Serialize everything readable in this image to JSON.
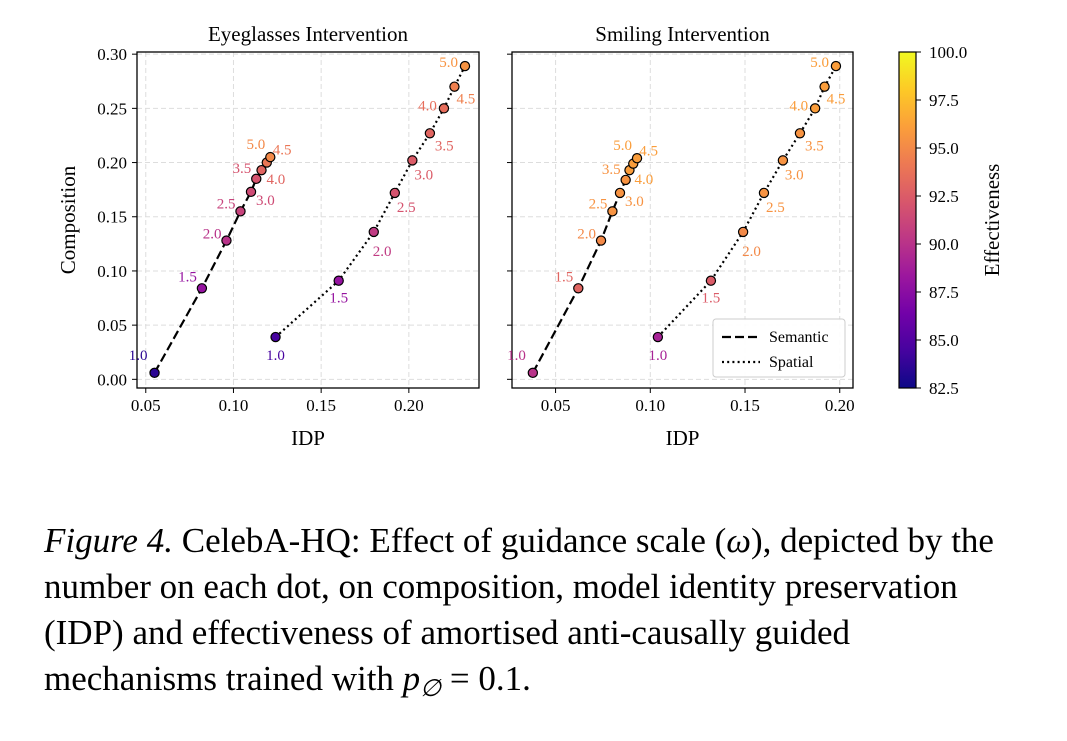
{
  "chart_data": [
    {
      "type": "scatter",
      "title": "Eyeglasses Intervention",
      "xlabel": "IDP",
      "ylabel": "Composition",
      "xlim": [
        0.045,
        0.24
      ],
      "ylim": [
        -0.008,
        0.302
      ],
      "xticks": [
        "0.05",
        "0.10",
        "0.15",
        "0.20"
      ],
      "yticks": [
        "0.00",
        "0.05",
        "0.10",
        "0.15",
        "0.20",
        "0.25",
        "0.30"
      ],
      "grid": true,
      "series": [
        {
          "name": "Semantic",
          "line_style": "dashed",
          "points": [
            {
              "x": 0.055,
              "y": 0.006,
              "label": "1.0",
              "effectiveness": 83.5
            },
            {
              "x": 0.082,
              "y": 0.084,
              "label": "1.5",
              "effectiveness": 88.0
            },
            {
              "x": 0.096,
              "y": 0.128,
              "label": "2.0",
              "effectiveness": 90.0
            },
            {
              "x": 0.104,
              "y": 0.155,
              "label": "2.5",
              "effectiveness": 91.0
            },
            {
              "x": 0.11,
              "y": 0.173,
              "label": "3.0",
              "effectiveness": 91.5
            },
            {
              "x": 0.113,
              "y": 0.185,
              "label": "3.5",
              "effectiveness": 92.0
            },
            {
              "x": 0.116,
              "y": 0.193,
              "label": "4.0",
              "effectiveness": 93.0
            },
            {
              "x": 0.119,
              "y": 0.2,
              "label": "4.5",
              "effectiveness": 94.0
            },
            {
              "x": 0.121,
              "y": 0.205,
              "label": "5.0",
              "effectiveness": 95.0
            }
          ]
        },
        {
          "name": "Spatial",
          "line_style": "dotted",
          "points": [
            {
              "x": 0.124,
              "y": 0.039,
              "label": "1.0",
              "effectiveness": 84.5
            },
            {
              "x": 0.16,
              "y": 0.091,
              "label": "1.5",
              "effectiveness": 88.0
            },
            {
              "x": 0.18,
              "y": 0.136,
              "label": "2.0",
              "effectiveness": 90.5
            },
            {
              "x": 0.192,
              "y": 0.172,
              "label": "2.5",
              "effectiveness": 92.0
            },
            {
              "x": 0.202,
              "y": 0.202,
              "label": "3.0",
              "effectiveness": 92.5
            },
            {
              "x": 0.212,
              "y": 0.227,
              "label": "3.5",
              "effectiveness": 93.0
            },
            {
              "x": 0.22,
              "y": 0.25,
              "label": "4.0",
              "effectiveness": 93.5
            },
            {
              "x": 0.226,
              "y": 0.27,
              "label": "4.5",
              "effectiveness": 94.5
            },
            {
              "x": 0.232,
              "y": 0.289,
              "label": "5.0",
              "effectiveness": 95.5
            }
          ]
        }
      ]
    },
    {
      "type": "scatter",
      "title": "Smiling Intervention",
      "xlabel": "IDP",
      "ylabel": "",
      "xlim": [
        0.027,
        0.207
      ],
      "ylim": [
        -0.008,
        0.302
      ],
      "xticks": [
        "0.05",
        "0.10",
        "0.15",
        "0.20"
      ],
      "yticks": [],
      "grid": true,
      "legend": {
        "position": "lower-right",
        "entries": [
          "Semantic",
          "Spatial"
        ]
      },
      "series": [
        {
          "name": "Semantic",
          "line_style": "dashed",
          "points": [
            {
              "x": 0.038,
              "y": 0.006,
              "label": "1.0",
              "effectiveness": 90.0
            },
            {
              "x": 0.062,
              "y": 0.084,
              "label": "1.5",
              "effectiveness": 93.0
            },
            {
              "x": 0.074,
              "y": 0.128,
              "label": "2.0",
              "effectiveness": 95.0
            },
            {
              "x": 0.08,
              "y": 0.155,
              "label": "2.5",
              "effectiveness": 95.5
            },
            {
              "x": 0.084,
              "y": 0.172,
              "label": "3.0",
              "effectiveness": 95.5
            },
            {
              "x": 0.087,
              "y": 0.184,
              "label": "3.5",
              "effectiveness": 95.5
            },
            {
              "x": 0.089,
              "y": 0.193,
              "label": "4.0",
              "effectiveness": 96.0
            },
            {
              "x": 0.091,
              "y": 0.199,
              "label": "4.5",
              "effectiveness": 96.0
            },
            {
              "x": 0.093,
              "y": 0.204,
              "label": "5.0",
              "effectiveness": 96.0
            }
          ]
        },
        {
          "name": "Spatial",
          "line_style": "dotted",
          "points": [
            {
              "x": 0.104,
              "y": 0.039,
              "label": "1.0",
              "effectiveness": 89.0
            },
            {
              "x": 0.132,
              "y": 0.091,
              "label": "1.5",
              "effectiveness": 92.5
            },
            {
              "x": 0.149,
              "y": 0.136,
              "label": "2.0",
              "effectiveness": 95.0
            },
            {
              "x": 0.16,
              "y": 0.172,
              "label": "2.5",
              "effectiveness": 95.5
            },
            {
              "x": 0.17,
              "y": 0.202,
              "label": "3.0",
              "effectiveness": 95.5
            },
            {
              "x": 0.179,
              "y": 0.227,
              "label": "3.5",
              "effectiveness": 95.5
            },
            {
              "x": 0.187,
              "y": 0.25,
              "label": "4.0",
              "effectiveness": 96.0
            },
            {
              "x": 0.192,
              "y": 0.27,
              "label": "4.5",
              "effectiveness": 96.0
            },
            {
              "x": 0.198,
              "y": 0.289,
              "label": "5.0",
              "effectiveness": 96.0
            }
          ]
        }
      ]
    }
  ],
  "colorbar": {
    "label": "Effectiveness",
    "range": [
      82.5,
      100.0
    ],
    "ticks": [
      "100.0",
      "97.5",
      "95.0",
      "92.5",
      "90.0",
      "87.5",
      "85.0",
      "82.5"
    ],
    "colormap": "plasma"
  },
  "colors": {
    "plasma_stops": [
      "#0d0887",
      "#46039f",
      "#7201a8",
      "#9c179e",
      "#bd3786",
      "#d8576b",
      "#ed7953",
      "#fb9f3a",
      "#fdca26",
      "#f0f921"
    ]
  },
  "caption": {
    "label": "Figure 4.",
    "text_before": " CelebA-HQ: Effect of guidance scale (",
    "omega": "ω",
    "text_middle": "), depicted by the number on each dot, on composition, model identity preservation (IDP) and effectiveness of amortised anti-causally guided mechanisms trained with ",
    "p_symbol": "p",
    "p_subscript": "∅",
    "equation_tail": " = 0.1."
  }
}
